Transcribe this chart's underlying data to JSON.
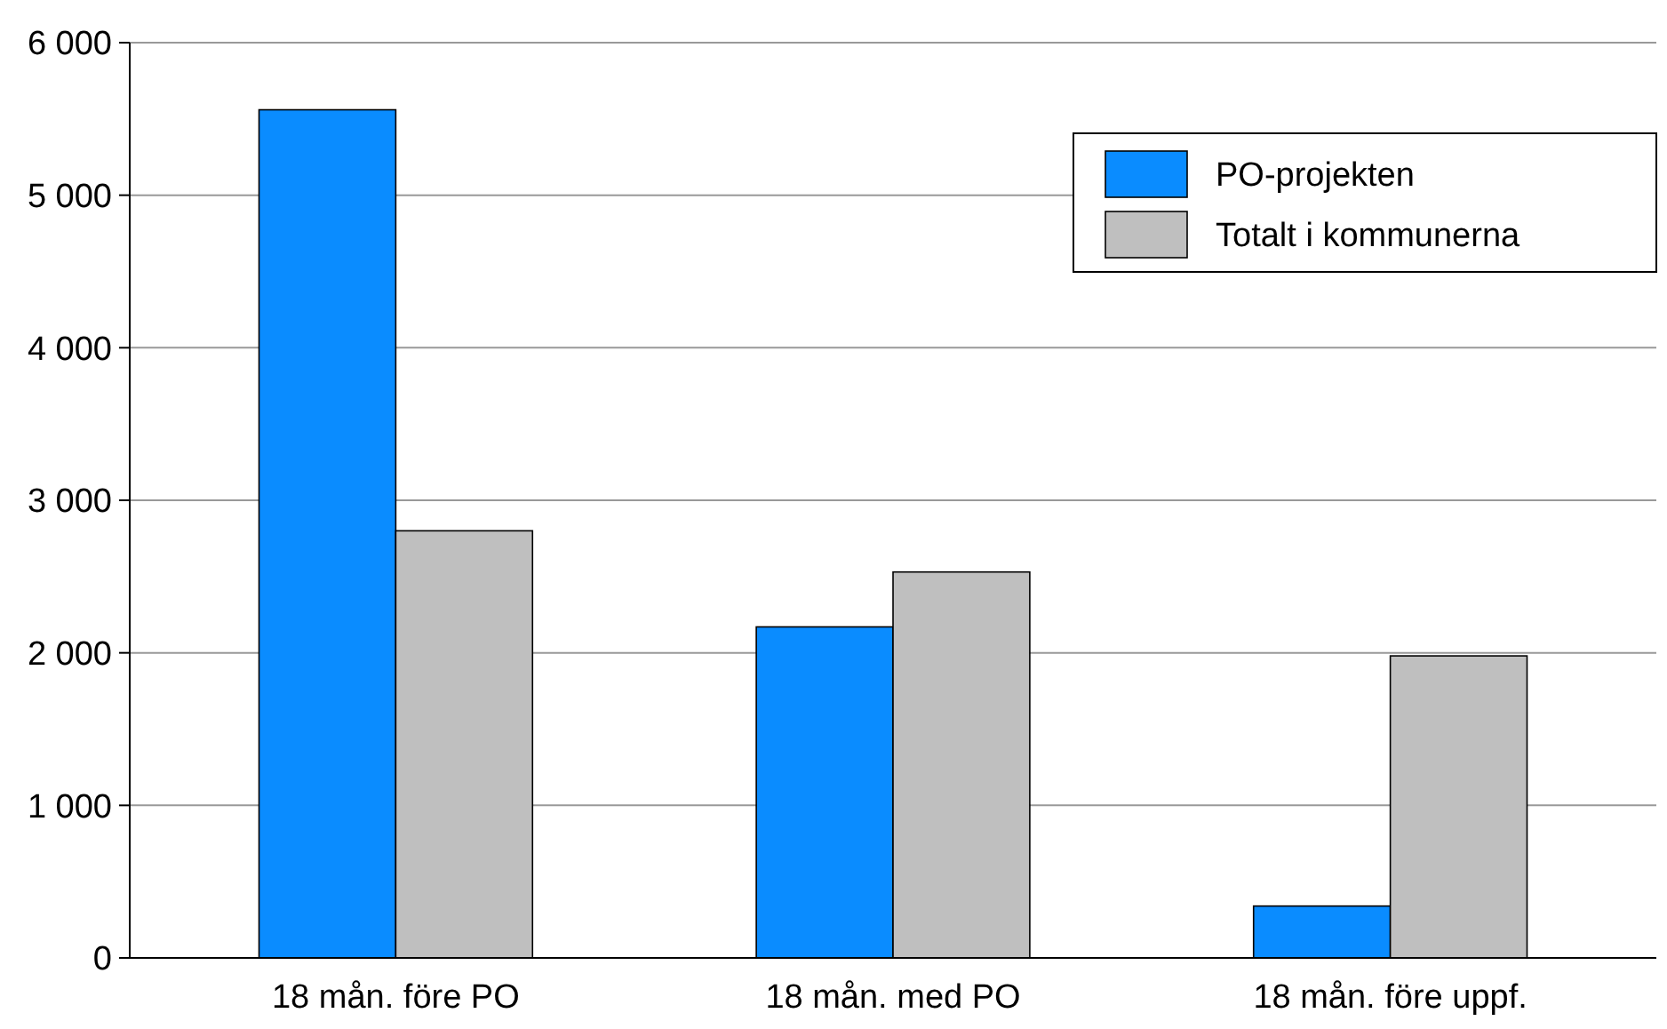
{
  "chart_data": {
    "type": "bar",
    "categories": [
      "18 mån. före PO",
      "18 mån. med PO",
      "18 mån. före uppf."
    ],
    "series": [
      {
        "name": "PO-projekten",
        "color": "#0a8cff",
        "values": [
          5560,
          2170,
          340
        ]
      },
      {
        "name": "Totalt i kommunerna",
        "color": "#bfbfbf",
        "values": [
          2800,
          2530,
          1980
        ]
      }
    ],
    "ylim": [
      0,
      6000
    ],
    "yticks": [
      {
        "value": 0,
        "label": "0"
      },
      {
        "value": 1000,
        "label": "1 000"
      },
      {
        "value": 2000,
        "label": "2 000"
      },
      {
        "value": 3000,
        "label": "3 000"
      },
      {
        "value": 4000,
        "label": "4 000"
      },
      {
        "value": 5000,
        "label": "5 000"
      },
      {
        "value": 6000,
        "label": "6 000"
      }
    ],
    "grid": "y",
    "legend": "top right"
  }
}
